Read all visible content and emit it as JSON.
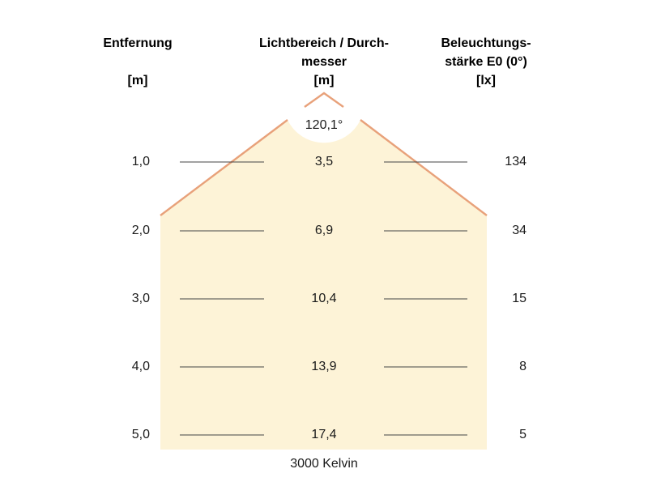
{
  "headers": {
    "distance": {
      "line1": "Entfernung",
      "unit": "[m]"
    },
    "beam": {
      "line1": "Lichtbereich / Durch-",
      "line2": "messer",
      "unit": "[m]"
    },
    "illuminance": {
      "line1": "Beleuchtungs-",
      "line2": "stärke E0 (0°)",
      "unit": "[lx]"
    }
  },
  "beam_angle": "120,1°",
  "rows": [
    {
      "distance": "1,0",
      "diameter": "3,5",
      "lux": "134"
    },
    {
      "distance": "2,0",
      "diameter": "6,9",
      "lux": "34"
    },
    {
      "distance": "3,0",
      "diameter": "10,4",
      "lux": "15"
    },
    {
      "distance": "4,0",
      "diameter": "13,9",
      "lux": "8"
    },
    {
      "distance": "5,0",
      "diameter": "17,4",
      "lux": "5"
    }
  ],
  "color_temperature": "3000 Kelvin",
  "colors": {
    "fill": "#fdf3d7",
    "edge": "#e8a17a",
    "line": "#444444"
  }
}
